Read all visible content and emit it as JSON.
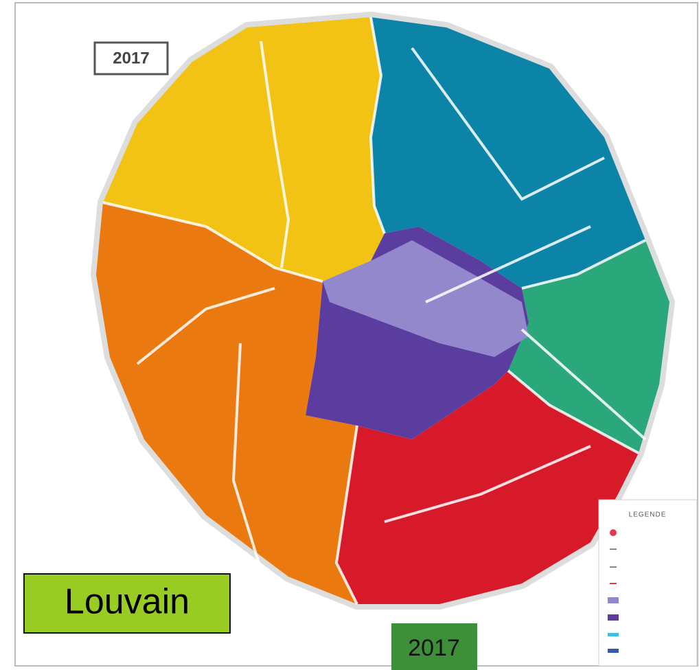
{
  "map": {
    "year_box": "2017"
  },
  "legend": {
    "title": "LEGENDE"
  },
  "labels": {
    "city": "Louvain",
    "year": "2017"
  }
}
